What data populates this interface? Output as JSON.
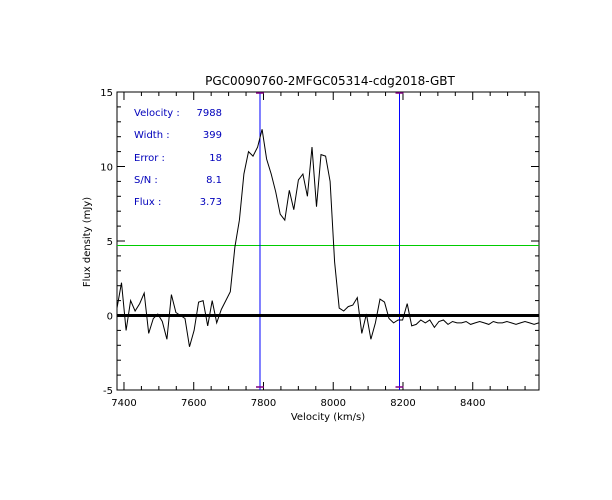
{
  "chart_data": {
    "type": "line",
    "title": "PGC0090760-2MFGC05314-cdg2018-GBT",
    "xlabel": "Velocity (km/s)",
    "ylabel": "Flux density (mJy)",
    "xlim": [
      7380,
      8590
    ],
    "ylim": [
      -5,
      15
    ],
    "x_ticks": [
      7400,
      7600,
      7800,
      8000,
      8200,
      8400
    ],
    "y_ticks": [
      -5,
      0,
      5,
      10,
      15
    ],
    "grid": false,
    "legend": "none",
    "series": [
      {
        "color": "#000000",
        "x": [
          7380,
          7393,
          7406,
          7419,
          7432,
          7445,
          7458,
          7471,
          7484,
          7497,
          7510,
          7523,
          7536,
          7549,
          7562,
          7575,
          7588,
          7601,
          7614,
          7627,
          7640,
          7653,
          7666,
          7679,
          7692,
          7705,
          7718,
          7731,
          7744,
          7757,
          7770,
          7783,
          7796,
          7809,
          7822,
          7835,
          7848,
          7861,
          7874,
          7887,
          7900,
          7913,
          7926,
          7939,
          7952,
          7965,
          7978,
          7991,
          8004,
          8017,
          8030,
          8043,
          8056,
          8069,
          8082,
          8095,
          8108,
          8121,
          8134,
          8147,
          8160,
          8173,
          8186,
          8199,
          8212,
          8225,
          8238,
          8251,
          8264,
          8277,
          8290,
          8303,
          8316,
          8329,
          8342,
          8355,
          8368,
          8381,
          8394,
          8407,
          8420,
          8433,
          8446,
          8459,
          8472,
          8485,
          8498,
          8511,
          8524,
          8537,
          8550,
          8563,
          8576,
          8589
        ],
        "y": [
          0.5,
          2.2,
          -1.0,
          1.0,
          0.3,
          0.8,
          1.5,
          -1.2,
          -0.2,
          0.1,
          -0.4,
          -1.6,
          1.4,
          0.2,
          0.0,
          -0.2,
          -2.1,
          -1.0,
          0.9,
          1.0,
          -0.7,
          1.0,
          -0.5,
          0.4,
          1.0,
          1.6,
          4.6,
          6.4,
          9.5,
          11.0,
          10.7,
          11.3,
          12.5,
          10.5,
          9.5,
          8.3,
          6.8,
          6.4,
          8.4,
          7.1,
          9.1,
          9.5,
          8.0,
          11.3,
          7.3,
          10.8,
          10.7,
          9.0,
          3.6,
          0.5,
          0.3,
          0.6,
          0.7,
          1.2,
          -1.2,
          0.1,
          -1.6,
          -0.5,
          1.1,
          0.9,
          -0.2,
          -0.5,
          -0.3,
          -0.3,
          0.8,
          -0.7,
          -0.6,
          -0.3,
          -0.5,
          -0.3,
          -0.8,
          -0.4,
          -0.3,
          -0.6,
          -0.4,
          -0.5,
          -0.5,
          -0.4,
          -0.6,
          -0.5,
          -0.4,
          -0.5,
          -0.6,
          -0.4,
          -0.5,
          -0.5,
          -0.4,
          -0.5,
          -0.6,
          -0.5,
          -0.4,
          -0.5,
          -0.6,
          -0.5
        ]
      }
    ],
    "reference_lines": {
      "zero_line": {
        "y": 0,
        "color": "#000000"
      },
      "half_peak_line": {
        "y": 4.7,
        "color": "#00cc00"
      },
      "velocity_limits": [
        {
          "x": 7790,
          "color": "#0000ff"
        },
        {
          "x": 8190,
          "color": "#0000ff"
        }
      ],
      "limit_marker_color": "#800080"
    },
    "annotations": [
      {
        "label": "Velocity :",
        "value": "7988"
      },
      {
        "label": "Width :",
        "value": "399"
      },
      {
        "label": "Error :",
        "value": "18"
      },
      {
        "label": "S/N :",
        "value": "8.1"
      },
      {
        "label": "Flux :",
        "value": "3.73"
      }
    ],
    "annotation_color": "#0000bb"
  }
}
